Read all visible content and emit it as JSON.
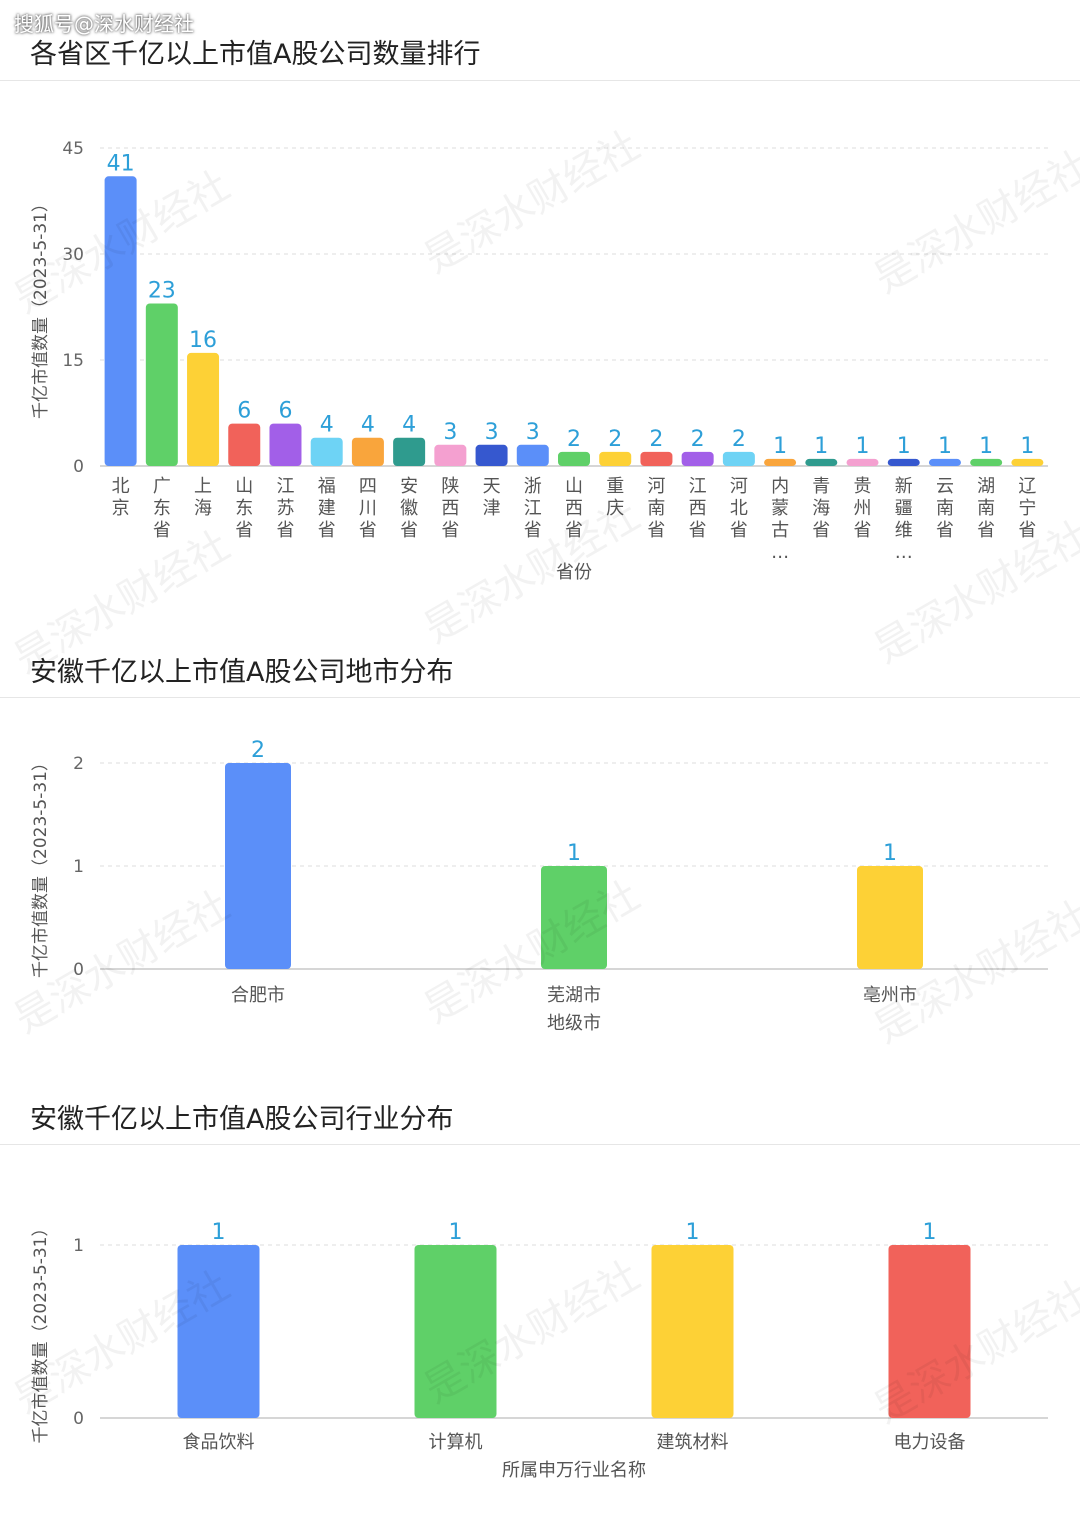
{
  "source_watermark": "搜狐号@深水财经社",
  "bg_watermark": "是深水财经社",
  "chart_data": [
    {
      "type": "bar",
      "title": "各省区千亿以上市值A股公司数量排行",
      "ylabel": "千亿市值数量（2023-5-31）",
      "xlabel": "省份",
      "ylim": [
        0,
        45
      ],
      "yticks": [
        0,
        15,
        30,
        45
      ],
      "grid": true,
      "categories": [
        "北京",
        "广东省",
        "上海",
        "山东省",
        "江苏省",
        "福建省",
        "四川省",
        "安徽省",
        "陕西省",
        "天津",
        "浙江省",
        "山西省",
        "重庆",
        "河南省",
        "江西省",
        "河北省",
        "内蒙古…",
        "青海省",
        "贵州省",
        "新疆维…",
        "云南省",
        "湖南省",
        "辽宁省"
      ],
      "values": [
        41,
        23,
        16,
        6,
        6,
        4,
        4,
        4,
        3,
        3,
        3,
        2,
        2,
        2,
        2,
        2,
        1,
        1,
        1,
        1,
        1,
        1,
        1
      ],
      "colors": [
        "#5b8ff9",
        "#5fd068",
        "#fdd136",
        "#f1625a",
        "#a25fe8",
        "#6ed3f5",
        "#f9a53c",
        "#2f9b8e",
        "#f4a0d0",
        "#3658cf",
        "#5b8ff9",
        "#5fd068",
        "#fdd136",
        "#f1625a",
        "#a25fe8",
        "#6ed3f5",
        "#f9a53c",
        "#2f9b8e",
        "#f4a0d0",
        "#3658cf",
        "#5b8ff9",
        "#5fd068",
        "#fdd136"
      ]
    },
    {
      "type": "bar",
      "title": "安徽千亿以上市值A股公司地市分布",
      "ylabel": "千亿市值数量（2023-5-31）",
      "xlabel": "地级市",
      "ylim": [
        0,
        2
      ],
      "yticks": [
        0,
        1,
        2
      ],
      "grid": true,
      "categories": [
        "合肥市",
        "芜湖市",
        "亳州市"
      ],
      "values": [
        2,
        1,
        1
      ],
      "colors": [
        "#5b8ff9",
        "#5fd068",
        "#fdd136"
      ]
    },
    {
      "type": "bar",
      "title": "安徽千亿以上市值A股公司行业分布",
      "ylabel": "千亿市值数量（2023-5-31）",
      "xlabel": "所属申万行业名称",
      "ylim": [
        0,
        1
      ],
      "yticks": [
        0,
        1
      ],
      "grid": true,
      "categories": [
        "食品饮料",
        "计算机",
        "建筑材料",
        "电力设备"
      ],
      "values": [
        1,
        1,
        1,
        1
      ],
      "colors": [
        "#5b8ff9",
        "#5fd068",
        "#fdd136",
        "#f1625a"
      ]
    }
  ]
}
